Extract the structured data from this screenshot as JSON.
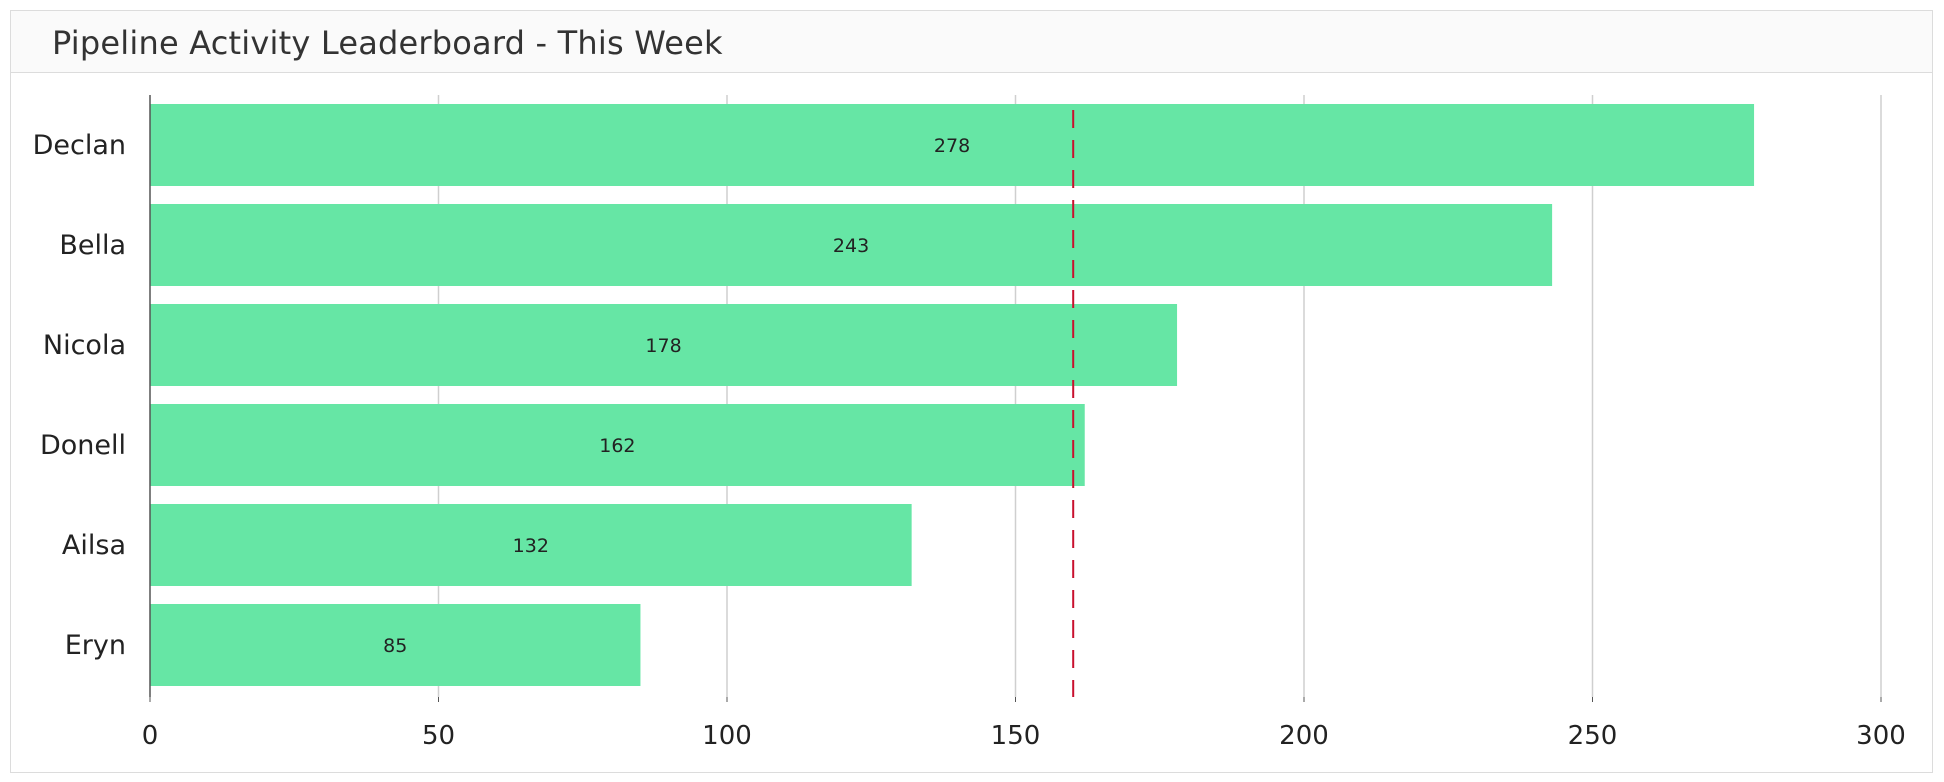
{
  "chart_data": {
    "type": "bar",
    "orientation": "horizontal",
    "title": "Pipeline Activity Leaderboard - This Week",
    "categories": [
      "Declan",
      "Bella",
      "Nicola",
      "Donell",
      "Ailsa",
      "Eryn"
    ],
    "values": [
      278,
      243,
      178,
      162,
      132,
      85
    ],
    "xlim": [
      0,
      300
    ],
    "xticks": [
      0,
      50,
      100,
      150,
      200,
      250,
      300
    ],
    "reference_line": {
      "value": 160,
      "style": "dashed",
      "color": "#c8102e"
    },
    "grid": true,
    "bar_color": "#66e6a5",
    "xlabel": "",
    "ylabel": ""
  }
}
